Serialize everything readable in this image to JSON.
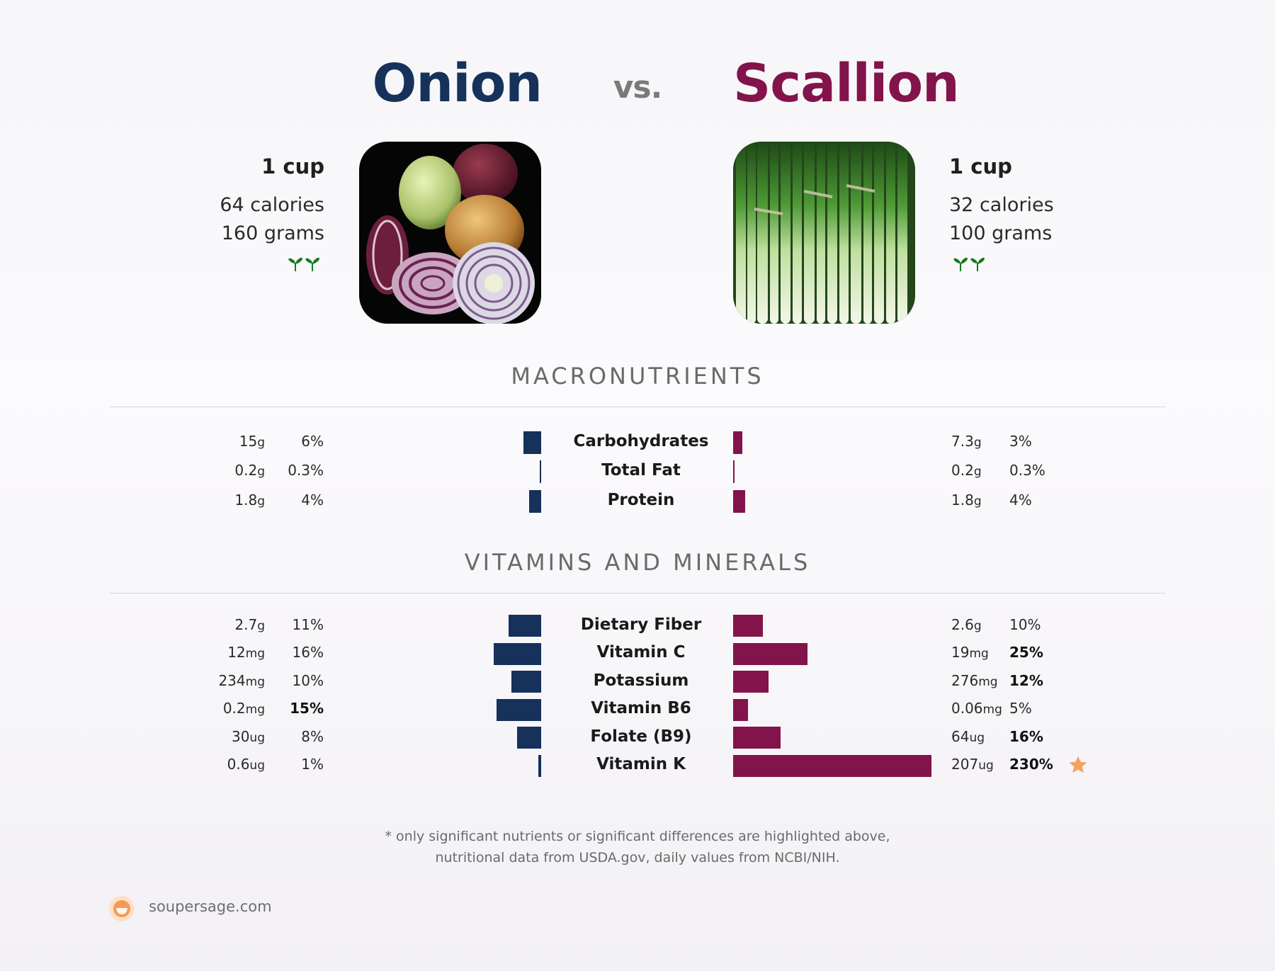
{
  "header": {
    "left_title": "Onion",
    "vs": "vs.",
    "right_title": "Scallion"
  },
  "left": {
    "serving": "1 cup",
    "calories": "64 calories",
    "grams": "160 grams",
    "icon": "sprouts-icon",
    "color": "#16315a"
  },
  "right": {
    "serving": "1 cup",
    "calories": "32 calories",
    "grams": "100 grams",
    "icon": "sprouts-icon",
    "color": "#83134b"
  },
  "sections": {
    "macros_title": "MACRONUTRIENTS",
    "vitamins_title": "VITAMINS AND MINERALS"
  },
  "footnote": {
    "line1": "* only significant nutrients or significant differences are highlighted above,",
    "line2": "nutritional data from USDA.gov, daily values from NCBI/NIH."
  },
  "brand": {
    "text": "soupersage.com"
  },
  "chart_data": [
    {
      "type": "bar",
      "title": "MACRONUTRIENTS",
      "categories": [
        "Carbohydrates",
        "Total Fat",
        "Protein"
      ],
      "series": [
        {
          "name": "Onion",
          "amounts": [
            [
              "15",
              "g"
            ],
            [
              "0.2",
              "g"
            ],
            [
              "1.8",
              "g"
            ]
          ],
          "percents": [
            "6%",
            "0.3%",
            "4%"
          ],
          "bold": [
            false,
            false,
            false
          ],
          "values": [
            6,
            0.3,
            4
          ]
        },
        {
          "name": "Scallion",
          "amounts": [
            [
              "7.3",
              "g"
            ],
            [
              "0.2",
              "g"
            ],
            [
              "1.8",
              "g"
            ]
          ],
          "percents": [
            "3%",
            "0.3%",
            "4%"
          ],
          "bold": [
            false,
            false,
            false
          ],
          "values": [
            3,
            0.3,
            4
          ]
        }
      ]
    },
    {
      "type": "bar",
      "title": "VITAMINS AND MINERALS",
      "categories": [
        "Dietary Fiber",
        "Vitamin C",
        "Potassium",
        "Vitamin B6",
        "Folate (B9)",
        "Vitamin K"
      ],
      "series": [
        {
          "name": "Onion",
          "amounts": [
            [
              "2.7",
              "g"
            ],
            [
              "12",
              "mg"
            ],
            [
              "234",
              "mg"
            ],
            [
              "0.2",
              "mg"
            ],
            [
              "30",
              "ug"
            ],
            [
              "0.6",
              "ug"
            ]
          ],
          "percents": [
            "11%",
            "16%",
            "10%",
            "15%",
            "8%",
            "1%"
          ],
          "bold": [
            false,
            false,
            false,
            true,
            false,
            false
          ],
          "values": [
            11,
            16,
            10,
            15,
            8,
            1
          ]
        },
        {
          "name": "Scallion",
          "amounts": [
            [
              "2.6",
              "g"
            ],
            [
              "19",
              "mg"
            ],
            [
              "276",
              "mg"
            ],
            [
              "0.06",
              "mg"
            ],
            [
              "64",
              "ug"
            ],
            [
              "207",
              "ug"
            ]
          ],
          "percents": [
            "10%",
            "25%",
            "12%",
            "5%",
            "16%",
            "230%"
          ],
          "bold": [
            false,
            true,
            true,
            false,
            true,
            true
          ],
          "values": [
            10,
            25,
            12,
            5,
            16,
            230
          ]
        }
      ],
      "highlight": {
        "category": "Vitamin K",
        "series": "Scallion",
        "icon": "star-icon",
        "color": "#f5a25d"
      }
    }
  ]
}
